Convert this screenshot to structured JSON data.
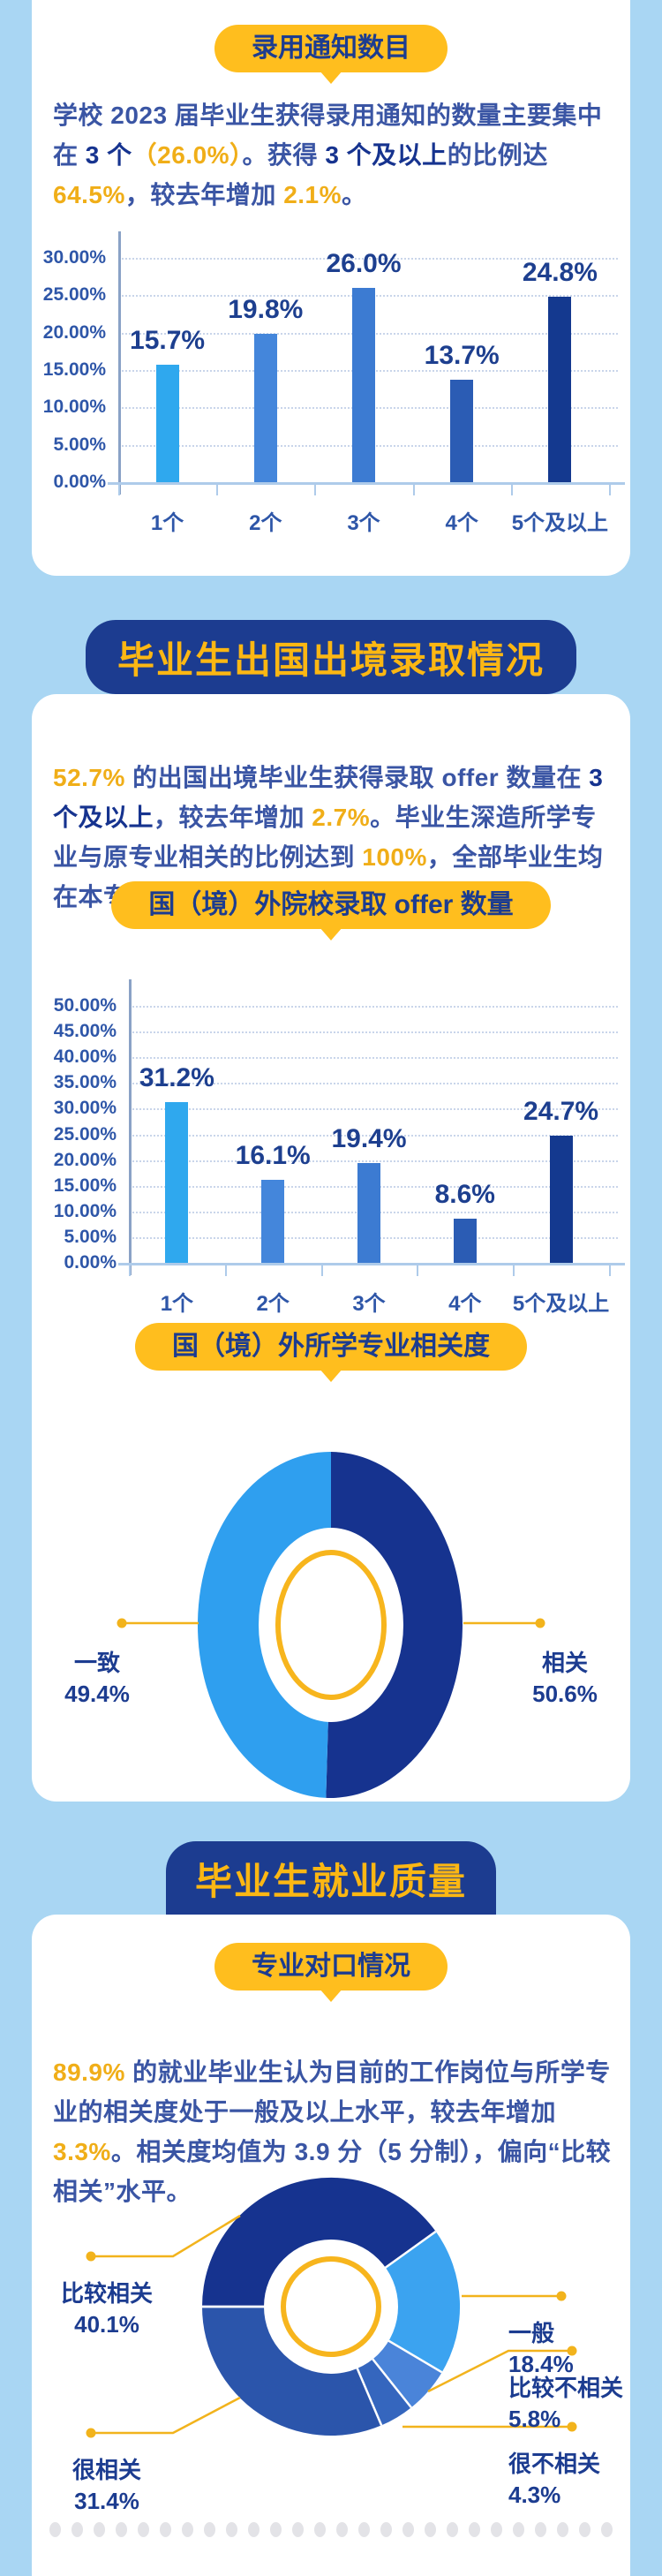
{
  "page": {
    "bg": "#A9D6F3",
    "card_bg": "#FFFFFF",
    "accent_yellow": "#FFBE1E",
    "banner_blue": "#1C3C90",
    "body_text_blue": "#3A55A4",
    "dark_text_blue": "#16338F",
    "highlight_yellow": "#F0AE18",
    "footer_dot_count": 26
  },
  "sections": {
    "s1": {
      "pill": "录用通知数目",
      "paragraph": [
        {
          "t": "学校 2023 届毕业生获得录用通知的数量主要集中在 ",
          "s": "n"
        },
        {
          "t": "3 个",
          "s": "b"
        },
        {
          "t": "（26.0%）",
          "s": "y"
        },
        {
          "t": "。获得 ",
          "s": "n"
        },
        {
          "t": "3 个及以上",
          "s": "b"
        },
        {
          "t": "的比例达 ",
          "s": "n"
        },
        {
          "t": "64.5%",
          "s": "y"
        },
        {
          "t": "，较去年增加 ",
          "s": "n"
        },
        {
          "t": "2.1%",
          "s": "y"
        },
        {
          "t": "。",
          "s": "n"
        }
      ]
    },
    "s2": {
      "banner": "毕业生出国出境录取情况",
      "paragraph": [
        {
          "t": "52.7%",
          "s": "y"
        },
        {
          "t": " 的出国出境毕业生获得录取 offer 数量在 ",
          "s": "n"
        },
        {
          "t": "3 个及以上",
          "s": "b"
        },
        {
          "t": "，较去年增加 ",
          "s": "n"
        },
        {
          "t": "2.7%",
          "s": "y"
        },
        {
          "t": "。毕业生深造所学专业与原专业相关的比例达到 ",
          "s": "n"
        },
        {
          "t": "100%",
          "s": "y"
        },
        {
          "t": "，全部毕业生均在本专业或相关专业继续学习。",
          "s": "n"
        }
      ],
      "pill_offer": "国（境）外院校录取 offer 数量",
      "pill_relevance": "国（境）外所学专业相关度"
    },
    "s3": {
      "banner": "毕业生就业质量",
      "pill": "专业对口情况",
      "paragraph": [
        {
          "t": "89.9%",
          "s": "y"
        },
        {
          "t": " 的就业毕业生认为目前的工作岗位与所学专业的相关度处于一般及以上水平，较去年增加 ",
          "s": "n"
        },
        {
          "t": "3.3%",
          "s": "y"
        },
        {
          "t": "。相关度均值为 3.9 分（5 分制），偏向“比较相关”水平。",
          "s": "n"
        }
      ]
    }
  },
  "chart_data": [
    {
      "id": "offer-notice-count",
      "type": "bar",
      "title": "录用通知数目",
      "categories": [
        "1个",
        "2个",
        "3个",
        "4个",
        "5个及以上"
      ],
      "values": [
        15.7,
        19.8,
        26.0,
        13.7,
        24.8
      ],
      "value_labels": [
        "15.7%",
        "19.8%",
        "26.0%",
        "13.7%",
        "24.8%"
      ],
      "xlabel": "",
      "ylabel": "",
      "ylim": [
        0,
        30
      ],
      "ytick_step": 5,
      "ytick_labels": [
        "0.00%",
        "5.00%",
        "10.00%",
        "15.00%",
        "20.00%",
        "25.00%",
        "30.00%"
      ],
      "bar_colors": [
        "#2FA8EE",
        "#4486DB",
        "#3C7BD2",
        "#2B5CB4",
        "#14398F"
      ],
      "grid": true,
      "legend": false
    },
    {
      "id": "abroad-offer-count",
      "type": "bar",
      "title": "国（境）外院校录取 offer 数量",
      "categories": [
        "1个",
        "2个",
        "3个",
        "4个",
        "5个及以上"
      ],
      "values": [
        31.2,
        16.1,
        19.4,
        8.6,
        24.7
      ],
      "value_labels": [
        "31.2%",
        "16.1%",
        "19.4%",
        "8.6%",
        "24.7%"
      ],
      "xlabel": "",
      "ylabel": "",
      "ylim": [
        0,
        50
      ],
      "ytick_step": 5,
      "ytick_labels": [
        "0.00%",
        "5.00%",
        "10.00%",
        "15.00%",
        "20.00%",
        "25.00%",
        "30.00%",
        "35.00%",
        "40.00%",
        "45.00%",
        "50.00%"
      ],
      "bar_colors": [
        "#2FA8EE",
        "#4486DB",
        "#3C7BD2",
        "#2B5CB4",
        "#14398F"
      ],
      "grid": true,
      "legend": false
    },
    {
      "id": "abroad-major-relevance",
      "type": "pie",
      "title": "国（境）外所学专业相关度",
      "start_angle": 0,
      "slices": [
        {
          "label": "相关",
          "value": 50.6,
          "color": "#16338F"
        },
        {
          "label": "一致",
          "value": 49.4,
          "color": "#2F9FEF"
        }
      ],
      "callouts": [
        {
          "label": "一致",
          "pct": "49.4%"
        },
        {
          "label": "相关",
          "pct": "50.6%"
        }
      ]
    },
    {
      "id": "job-major-relevance",
      "type": "pie",
      "title": "专业对口情况",
      "start_angle": 270,
      "separators": true,
      "slices": [
        {
          "label": "比较相关",
          "value": 40.1,
          "color": "#16338F"
        },
        {
          "label": "一般",
          "value": 18.4,
          "color": "#3BA3F0"
        },
        {
          "label": "比较不相关",
          "value": 5.8,
          "color": "#4A84D9"
        },
        {
          "label": "很不相关",
          "value": 4.3,
          "color": "#3566BE"
        },
        {
          "label": "很相关",
          "value": 31.4,
          "color": "#2B55AB"
        }
      ],
      "callouts": [
        {
          "label": "比较相关",
          "pct": "40.1%"
        },
        {
          "label": "一般",
          "pct": "18.4%"
        },
        {
          "label": "比较不相关",
          "pct": "5.8%"
        },
        {
          "label": "很不相关",
          "pct": "4.3%"
        },
        {
          "label": "很相关",
          "pct": "31.4%"
        }
      ]
    }
  ]
}
